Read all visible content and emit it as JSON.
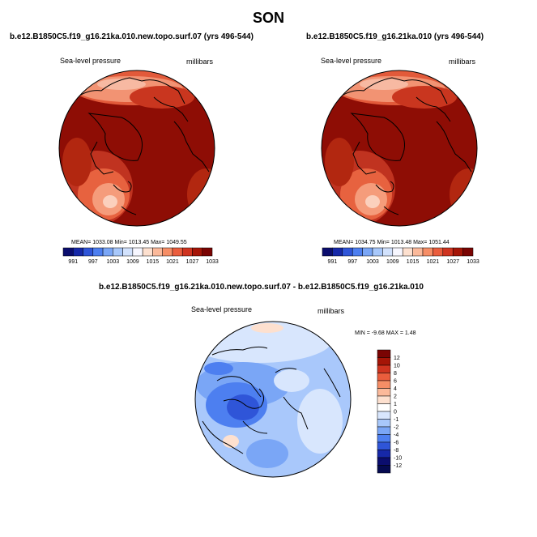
{
  "title": "SON",
  "panels": [
    {
      "title": "b.e12.B1850C5.f19_g16.21ka.010.new.topo.surf.07 (yrs 496-544)",
      "left_label": "Sea-level pressure",
      "right_label": "millibars",
      "stats": "MEAN= 1033.08  Min= 1013.45  Max= 1049.55"
    },
    {
      "title": "b.e12.B1850C5.f19_g16.21ka.010 (yrs 496-544)",
      "left_label": "Sea-level pressure",
      "right_label": "millibars",
      "stats": "MEAN= 1034.75  Min= 1013.48  Max= 1051.44"
    },
    {
      "title": "b.e12.B1850C5.f19_g16.21ka.010.new.topo.surf.07 - b.e12.B1850C5.f19_g16.21ka.010",
      "left_label": "Sea-level pressure",
      "right_label": "millibars",
      "stats": "MIN =  -9.68 MAX =   1.48"
    }
  ],
  "chart_data": [
    {
      "type": "heatmap",
      "projection": "polar stereographic (north pole)",
      "variable": "Sea-level pressure",
      "units": "millibars",
      "summary": {
        "mean": 1033.08,
        "min": 1013.45,
        "max": 1049.55
      },
      "colorbar": {
        "orientation": "horizontal",
        "levels": [
          991,
          997,
          1003,
          1009,
          1015,
          1021,
          1027,
          1033
        ],
        "colors": [
          "#0b0d6e",
          "#1628a8",
          "#2f55d8",
          "#4d7ff0",
          "#7aa6f6",
          "#a8c8fb",
          "#d2e2fd",
          "#f7f7ff",
          "#fde0cf",
          "#fbb99a",
          "#f68e66",
          "#ea5d3d",
          "#cf3420",
          "#a51507",
          "#7a0403"
        ]
      }
    },
    {
      "type": "heatmap",
      "projection": "polar stereographic (north pole)",
      "variable": "Sea-level pressure",
      "units": "millibars",
      "summary": {
        "mean": 1034.75,
        "min": 1013.48,
        "max": 1051.44
      },
      "colorbar": {
        "orientation": "horizontal",
        "levels": [
          991,
          997,
          1003,
          1009,
          1015,
          1021,
          1027,
          1033
        ],
        "colors": [
          "#0b0d6e",
          "#1628a8",
          "#2f55d8",
          "#4d7ff0",
          "#7aa6f6",
          "#a8c8fb",
          "#d2e2fd",
          "#f7f7ff",
          "#fde0cf",
          "#fbb99a",
          "#f68e66",
          "#ea5d3d",
          "#cf3420",
          "#a51507",
          "#7a0403"
        ]
      }
    },
    {
      "type": "heatmap",
      "projection": "polar stereographic (north pole)",
      "variable": "Sea-level pressure difference",
      "units": "millibars",
      "summary": {
        "min": -9.68,
        "max": 1.48
      },
      "colorbar": {
        "orientation": "vertical",
        "levels": [
          12,
          10,
          8,
          6,
          4,
          2,
          1,
          0,
          -1,
          -2,
          -4,
          -6,
          -8,
          -10,
          -12
        ],
        "colors": [
          "#7a0403",
          "#a51507",
          "#cf3420",
          "#ea5d3d",
          "#f68e66",
          "#fbb99a",
          "#fde0cf",
          "#ffffff",
          "#d8e6fd",
          "#a8c8fb",
          "#7aa6f6",
          "#4d7ff0",
          "#2f55d8",
          "#1628a8",
          "#0b0d6e",
          "#050a50"
        ]
      }
    }
  ]
}
